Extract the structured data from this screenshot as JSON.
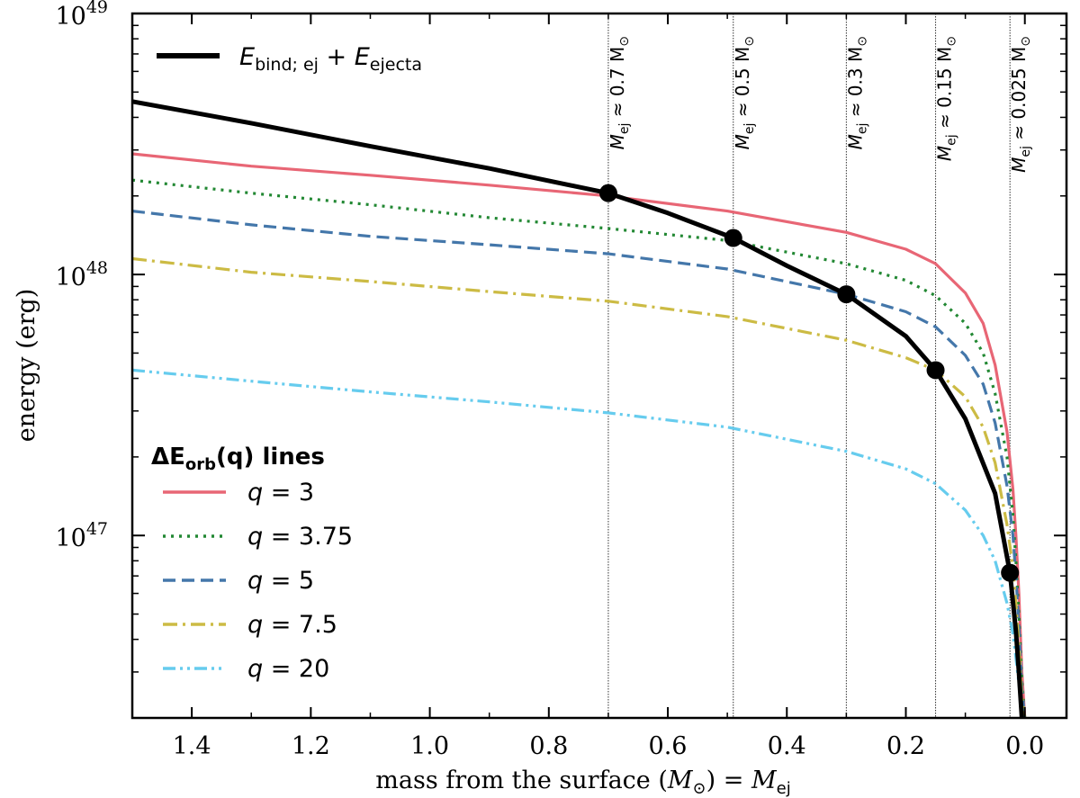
{
  "chart_data": {
    "type": "line",
    "xlabel_prefix": "mass from the surface (",
    "xlabel_unit": "M",
    "xlabel_unit_sub": "⊙",
    "xlabel_suffix": ") = ",
    "xlabel_var": "M",
    "xlabel_var_sub": "ej",
    "ylabel": "energy (erg)",
    "xlim": [
      1.5,
      -0.07
    ],
    "ylog": true,
    "ylim": [
      2e+46,
      1e+49
    ],
    "x_ticks": [
      1.4,
      1.2,
      1.0,
      0.8,
      0.6,
      0.4,
      0.2,
      0.0
    ],
    "x_tick_labels": [
      "1.4",
      "1.2",
      "1.0",
      "0.8",
      "0.6",
      "0.4",
      "0.2",
      "0.0"
    ],
    "y_major_ticks": [
      1e+47,
      1e+48,
      1e+49
    ],
    "y_tick_labels": [
      {
        "base": "10",
        "exp": "47"
      },
      {
        "base": "10",
        "exp": "48"
      },
      {
        "base": "10",
        "exp": "49"
      }
    ],
    "series": [
      {
        "name": "E_bind;ej + E_ejecta",
        "color": "#000000",
        "style": "solid",
        "x": [
          1.5,
          1.3,
          1.1,
          0.9,
          0.7,
          0.6,
          0.49,
          0.4,
          0.3,
          0.2,
          0.15,
          0.1,
          0.05,
          0.025,
          0.015,
          0.01,
          0.005
        ],
        "y": [
          4.6e+48,
          3.8e+48,
          3.1e+48,
          2.55e+48,
          2.05e+48,
          1.72e+48,
          1.38e+48,
          1.08e+48,
          8.4e+47,
          5.8e+47,
          4.3e+47,
          2.8e+47,
          1.45e+47,
          7.2e+46,
          4.3e+46,
          3e+46,
          2e+46
        ]
      },
      {
        "name": "q = 3",
        "color": "#e86675",
        "style": "solid",
        "x": [
          1.5,
          1.3,
          1.1,
          0.9,
          0.7,
          0.5,
          0.3,
          0.2,
          0.15,
          0.1,
          0.07,
          0.05,
          0.03,
          0.02,
          0.015,
          0.01,
          0.005,
          0.0
        ],
        "y": [
          2.9e+48,
          2.6e+48,
          2.4e+48,
          2.2e+48,
          2e+48,
          1.75e+48,
          1.45e+48,
          1.25e+48,
          1.1e+48,
          8.5e+47,
          6.5e+47,
          4.5e+47,
          2.5e+47,
          1.5e+47,
          1e+47,
          6e+46,
          3e+46,
          2e+46
        ]
      },
      {
        "name": "q = 3.75",
        "color": "#228833",
        "style": "dotted",
        "x": [
          1.5,
          1.3,
          1.1,
          0.9,
          0.7,
          0.5,
          0.3,
          0.2,
          0.15,
          0.1,
          0.07,
          0.05,
          0.03,
          0.02,
          0.015,
          0.01,
          0.005,
          0.0
        ],
        "y": [
          2.3e+48,
          2.05e+48,
          1.85e+48,
          1.65e+48,
          1.5e+48,
          1.35e+48,
          1.1e+48,
          9.5e+47,
          8.3e+47,
          6.5e+47,
          5e+47,
          3.5e+47,
          2e+47,
          1.2e+47,
          8e+46,
          5e+46,
          2.8e+46,
          2e+46
        ]
      },
      {
        "name": "q = 5",
        "color": "#4477aa",
        "style": "dashed",
        "x": [
          1.5,
          1.3,
          1.1,
          0.9,
          0.7,
          0.5,
          0.3,
          0.2,
          0.15,
          0.1,
          0.07,
          0.05,
          0.03,
          0.02,
          0.015,
          0.01,
          0.005,
          0.0
        ],
        "y": [
          1.75e+48,
          1.55e+48,
          1.4e+48,
          1.3e+48,
          1.2e+48,
          1.05e+48,
          8.4e+47,
          7.2e+47,
          6.3e+47,
          4.9e+47,
          3.8e+47,
          2.7e+47,
          1.55e+47,
          1e+47,
          7e+46,
          4.5e+46,
          2.6e+46,
          2e+46
        ]
      },
      {
        "name": "q = 7.5",
        "color": "#ccbb44",
        "style": "dashdot",
        "x": [
          1.5,
          1.3,
          1.1,
          0.9,
          0.7,
          0.5,
          0.3,
          0.2,
          0.15,
          0.1,
          0.07,
          0.05,
          0.03,
          0.02,
          0.015,
          0.01,
          0.005,
          0.0
        ],
        "y": [
          1.15e+48,
          1.02e+48,
          9.4e+47,
          8.6e+47,
          7.9e+47,
          6.9e+47,
          5.6e+47,
          4.8e+47,
          4.3e+47,
          3.4e+47,
          2.6e+47,
          1.9e+47,
          1.1e+47,
          7.5e+46,
          5.5e+46,
          3.8e+46,
          2.4e+46,
          2e+46
        ]
      },
      {
        "name": "q = 20",
        "color": "#66ccee",
        "style": "dashdotdot",
        "x": [
          1.5,
          1.3,
          1.1,
          0.9,
          0.7,
          0.5,
          0.3,
          0.2,
          0.15,
          0.1,
          0.07,
          0.05,
          0.03,
          0.02,
          0.015,
          0.01,
          0.005,
          0.0
        ],
        "y": [
          4.3e+47,
          3.9e+47,
          3.55e+47,
          3.25e+47,
          2.95e+47,
          2.6e+47,
          2.1e+47,
          1.8e+47,
          1.58e+47,
          1.25e+47,
          1e+47,
          8e+46,
          5.5e+46,
          4.2e+46,
          3.4e+46,
          2.7e+46,
          2.2e+46,
          2e+46
        ]
      }
    ],
    "intersections": [
      {
        "x": 0.7,
        "y": 2.05e+48
      },
      {
        "x": 0.49,
        "y": 1.38e+48
      },
      {
        "x": 0.3,
        "y": 8.4e+47
      },
      {
        "x": 0.15,
        "y": 4.3e+47
      },
      {
        "x": 0.025,
        "y": 7.2e+46
      }
    ],
    "vlines": [
      {
        "x": 0.7,
        "var": "M",
        "sub": "ej",
        "text": " ≈ 0.7 M",
        "unit_sub": "⊙"
      },
      {
        "x": 0.49,
        "var": "M",
        "sub": "ej",
        "text": " ≈ 0.5 M",
        "unit_sub": "⊙"
      },
      {
        "x": 0.3,
        "var": "M",
        "sub": "ej",
        "text": " ≈ 0.3 M",
        "unit_sub": "⊙"
      },
      {
        "x": 0.15,
        "var": "M",
        "sub": "ej",
        "text": " ≈ 0.15 M",
        "unit_sub": "⊙"
      },
      {
        "x": 0.025,
        "var": "M",
        "sub": "ej",
        "text": " ≈ 0.025 M",
        "unit_sub": "⊙"
      }
    ],
    "legend_top": {
      "e1": "E",
      "e1_sub": "bind; ej",
      "plus": " + ",
      "e2": "E",
      "e2_sub": "ejecta"
    },
    "legend_lines_title": {
      "prefix": "ΔE",
      "sub": "orb",
      "suffix": "(q) lines"
    },
    "legend_entries": [
      {
        "var": "q",
        "text": " = 3"
      },
      {
        "var": "q",
        "text": " = 3.75"
      },
      {
        "var": "q",
        "text": " = 5"
      },
      {
        "var": "q",
        "text": " = 7.5"
      },
      {
        "var": "q",
        "text": " = 20"
      }
    ]
  }
}
